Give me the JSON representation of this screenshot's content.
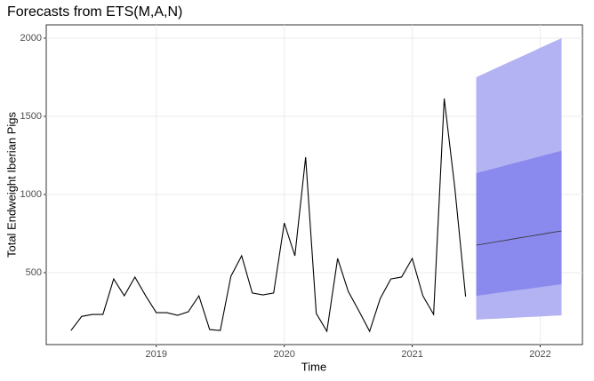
{
  "chart_data": {
    "type": "line",
    "title": "Forecasts from ETS(M,A,N)",
    "x_label": "Time",
    "y_label": "Total Endweight Iberian Pigs",
    "xlim": [
      2018.14,
      2022.33
    ],
    "ylim": [
      40,
      2085
    ],
    "xticks": [
      2019,
      2020,
      2021,
      2022
    ],
    "yticks": [
      500,
      1000,
      1500,
      2000
    ],
    "grid": true,
    "history": {
      "color": "#000000",
      "x": [
        2018.333,
        2018.417,
        2018.5,
        2018.583,
        2018.667,
        2018.75,
        2018.833,
        2018.917,
        2019.0,
        2019.083,
        2019.167,
        2019.25,
        2019.333,
        2019.417,
        2019.5,
        2019.583,
        2019.667,
        2019.75,
        2019.833,
        2019.917,
        2020.0,
        2020.083,
        2020.167,
        2020.25,
        2020.333,
        2020.417,
        2020.5,
        2020.583,
        2020.667,
        2020.75,
        2020.833,
        2020.917,
        2021.0,
        2021.083,
        2021.167,
        2021.25,
        2021.333,
        2021.417
      ],
      "values": [
        130,
        220,
        233,
        233,
        460,
        352,
        472,
        352,
        244,
        244,
        227,
        250,
        352,
        136,
        130,
        477,
        608,
        370,
        358,
        370,
        818,
        608,
        1239,
        239,
        125,
        591,
        380,
        256,
        125,
        335,
        460,
        472,
        591,
        352,
        233,
        1614,
        1040,
        347
      ]
    },
    "forecast": {
      "x": [
        2021.5,
        2021.583,
        2021.667,
        2021.75,
        2021.833,
        2021.917,
        2022.0,
        2022.083,
        2022.167
      ],
      "mean": [
        676,
        687,
        699,
        710,
        722,
        733,
        744,
        756,
        767
      ],
      "lo80": [
        352,
        361,
        371,
        380,
        389,
        398,
        408,
        417,
        426
      ],
      "hi80": [
        1136,
        1154,
        1172,
        1190,
        1208,
        1226,
        1244,
        1262,
        1280
      ],
      "lo95": [
        199,
        203,
        206,
        210,
        213,
        217,
        220,
        224,
        227
      ],
      "hi95": [
        1750,
        1781,
        1813,
        1844,
        1875,
        1906,
        1938,
        1969,
        2000
      ],
      "mean_color": "#333333",
      "color80": "#8a8aee",
      "color95": "#b3b3f3"
    }
  }
}
